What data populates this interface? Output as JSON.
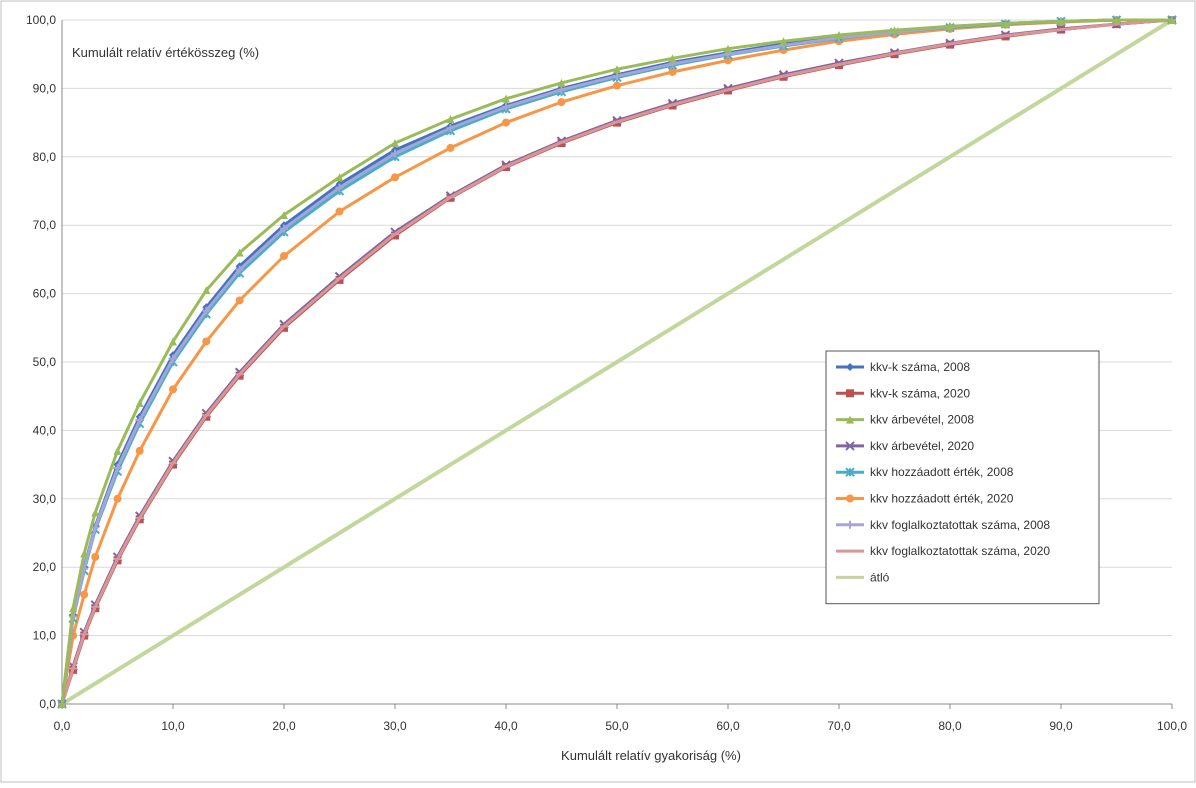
{
  "chart_data": {
    "type": "line",
    "ylabel": "Kumulált relatív értékösszeg (%)",
    "xlabel": "Kumulált relatív gyakoriság (%)",
    "xlim": [
      0,
      100
    ],
    "ylim": [
      0,
      100
    ],
    "x_ticks": [
      "0,0",
      "10,0",
      "20,0",
      "30,0",
      "40,0",
      "50,0",
      "60,0",
      "70,0",
      "80,0",
      "90,0",
      "100,0"
    ],
    "y_ticks": [
      "0,0",
      "10,0",
      "20,0",
      "30,0",
      "40,0",
      "50,0",
      "60,0",
      "70,0",
      "80,0",
      "90,0",
      "100,0"
    ],
    "grid": "horizontal",
    "legend_position": "right-middle",
    "x": [
      0,
      1,
      2,
      3,
      5,
      7,
      10,
      13,
      16,
      20,
      25,
      30,
      35,
      40,
      45,
      50,
      55,
      60,
      65,
      70,
      75,
      80,
      85,
      90,
      95,
      100
    ],
    "series": [
      {
        "name": "kkv-k száma, 2008",
        "color": "#4472c4",
        "marker": "diamond",
        "values": [
          0,
          13,
          20,
          26,
          35,
          42,
          51,
          58,
          64,
          70,
          76,
          81,
          84.5,
          87.5,
          90,
          92,
          93.8,
          95.2,
          96.5,
          97.5,
          98.3,
          99,
          99.5,
          99.8,
          100,
          100
        ]
      },
      {
        "name": "kkv-k száma, 2020",
        "color": "#c0504d",
        "marker": "square",
        "values": [
          0,
          5,
          10,
          14,
          21,
          27,
          35,
          42,
          48,
          55,
          62,
          68.5,
          74,
          78.5,
          82,
          85,
          87.5,
          89.7,
          91.7,
          93.4,
          95,
          96.4,
          97.6,
          98.6,
          99.4,
          100
        ]
      },
      {
        "name": "kkv árbevétel, 2008",
        "color": "#9bbb59",
        "marker": "triangle",
        "values": [
          0,
          14,
          22,
          28,
          37,
          44,
          53,
          60.5,
          66,
          71.5,
          77,
          82,
          85.5,
          88.5,
          90.8,
          92.8,
          94.4,
          95.8,
          96.9,
          97.8,
          98.5,
          99.1,
          99.5,
          99.8,
          100,
          100
        ]
      },
      {
        "name": "kkv árbevétel, 2020",
        "color": "#8064a2",
        "marker": "x",
        "values": [
          0,
          5.5,
          10.5,
          14.5,
          21.5,
          27.5,
          35.5,
          42.5,
          48.5,
          55.5,
          62.5,
          69,
          74.3,
          78.8,
          82.3,
          85.3,
          87.8,
          90,
          92,
          93.7,
          95.2,
          96.6,
          97.8,
          98.7,
          99.4,
          100
        ]
      },
      {
        "name": "kkv hozzáadott érték, 2008",
        "color": "#4bacc6",
        "marker": "star",
        "values": [
          0,
          12.5,
          19.5,
          25.5,
          34,
          41,
          50,
          57,
          63,
          69,
          75,
          80,
          83.8,
          87,
          89.5,
          91.6,
          93.4,
          94.9,
          96.2,
          97.3,
          98.2,
          98.9,
          99.4,
          99.8,
          100,
          100
        ]
      },
      {
        "name": "kkv hozzáadott érték, 2020",
        "color": "#f79646",
        "marker": "circle",
        "values": [
          0,
          10,
          16,
          21.5,
          30,
          37,
          46,
          53,
          59,
          65.5,
          72,
          77,
          81.3,
          85,
          88,
          90.4,
          92.4,
          94.1,
          95.6,
          96.9,
          97.9,
          98.7,
          99.3,
          99.7,
          100,
          100
        ]
      },
      {
        "name": "kkv foglalkoztatottak száma, 2008",
        "color": "#a5a5d8",
        "marker": "plus",
        "values": [
          0,
          12.8,
          19.8,
          25.8,
          34.5,
          41.5,
          50.5,
          57.5,
          63.5,
          69.5,
          75.5,
          80.5,
          84.2,
          87.3,
          89.8,
          91.8,
          93.6,
          95,
          96.3,
          97.4,
          98.2,
          99,
          99.5,
          99.8,
          100,
          100
        ]
      },
      {
        "name": "kkv foglalkoztatottak száma, 2020",
        "color": "#d99694",
        "marker": "dash",
        "values": [
          0,
          5.2,
          10.2,
          14.2,
          21.2,
          27.2,
          35.2,
          42.2,
          48.2,
          55.2,
          62.2,
          68.7,
          74.1,
          78.6,
          82.1,
          85.1,
          87.6,
          89.8,
          91.8,
          93.5,
          95.1,
          96.5,
          97.7,
          98.6,
          99.4,
          100
        ]
      },
      {
        "name": "átló",
        "color": "#c3d69b",
        "marker": "none",
        "values": [
          0,
          1,
          2,
          3,
          5,
          7,
          10,
          13,
          16,
          20,
          25,
          30,
          35,
          40,
          45,
          50,
          55,
          60,
          65,
          70,
          75,
          80,
          85,
          90,
          95,
          100
        ]
      }
    ]
  }
}
